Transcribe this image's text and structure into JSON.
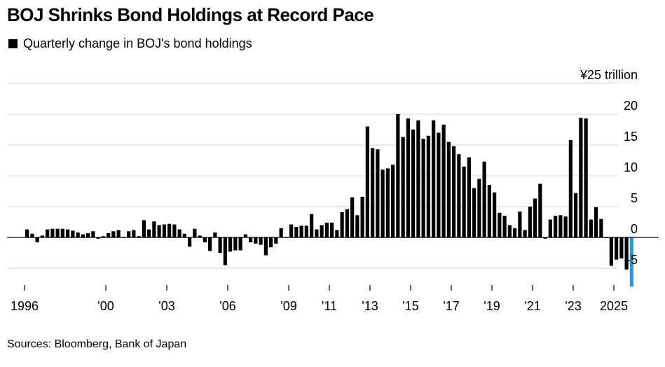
{
  "title": "BOJ Shrinks Bond Holdings at Record Pace",
  "legend_label": "Quarterly change in BOJ's bond holdings",
  "source": "Sources: Bloomberg, Bank of Japan",
  "colors": {
    "bar": "#000000",
    "highlight": "#1a9fe0",
    "grid": "#d4d4d4",
    "axis": "#000000"
  },
  "chart_data": {
    "type": "bar",
    "title": "BOJ Shrinks Bond Holdings at Record Pace",
    "series_label": "Quarterly change in BOJ's bond holdings",
    "unit_label": "¥25 trillion",
    "y_ticks": [
      20,
      15,
      10,
      5,
      0,
      -5
    ],
    "y_tick_labels": [
      "20",
      "15",
      "10",
      "5",
      "0",
      "-5"
    ],
    "ylim": [
      -6.5,
      25
    ],
    "x_start": 1996.0,
    "x_step": 0.25,
    "x_ticks": [
      1996,
      2000,
      2003,
      2006,
      2009,
      2011,
      2013,
      2015,
      2017,
      2019,
      2021,
      2023,
      2025
    ],
    "x_tick_labels": [
      "1996",
      "'00",
      "'03",
      "'06",
      "'09",
      "'11",
      "'13",
      "'15",
      "'17",
      "'19",
      "'21",
      "'23",
      "2025"
    ],
    "values": [
      1.3,
      0.6,
      -0.8,
      0.3,
      1.3,
      1.4,
      1.4,
      1.4,
      1.3,
      1.1,
      0.8,
      0.5,
      0.7,
      1.0,
      -0.2,
      0.2,
      0.7,
      1.0,
      1.2,
      0.1,
      1.0,
      1.2,
      0.2,
      2.8,
      1.3,
      2.6,
      2.0,
      2.1,
      2.2,
      2.1,
      1.3,
      0.6,
      -1.5,
      1.4,
      0.3,
      -0.8,
      -2.2,
      0.8,
      -2.5,
      -4.5,
      -2.3,
      -2.1,
      -2.1,
      0.5,
      -0.8,
      -1.0,
      -1.2,
      -2.9,
      -1.6,
      -1.0,
      1.5,
      0.1,
      2.1,
      1.7,
      1.9,
      1.9,
      3.8,
      1.3,
      2.0,
      2.4,
      2.4,
      1.2,
      4.1,
      4.6,
      6.5,
      3.6,
      6.6,
      18.0,
      14.5,
      14.3,
      11.0,
      11.2,
      11.8,
      20.0,
      16.3,
      19.3,
      17.5,
      19.0,
      16.0,
      16.5,
      19.0,
      17.0,
      18.3,
      15.5,
      14.8,
      13.5,
      11.5,
      13.0,
      8.0,
      9.5,
      12.3,
      8.5,
      7.3,
      4.0,
      3.5,
      2.0,
      1.5,
      4.2,
      1.2,
      5.0,
      6.3,
      8.7,
      -0.2,
      2.9,
      3.5,
      3.6,
      3.4,
      15.8,
      7.2,
      19.4,
      19.3,
      2.9,
      4.9,
      3.0,
      -0.1,
      -4.6,
      -3.6,
      -3.4,
      -5.2,
      -8.0
    ],
    "highlight_last": true
  }
}
